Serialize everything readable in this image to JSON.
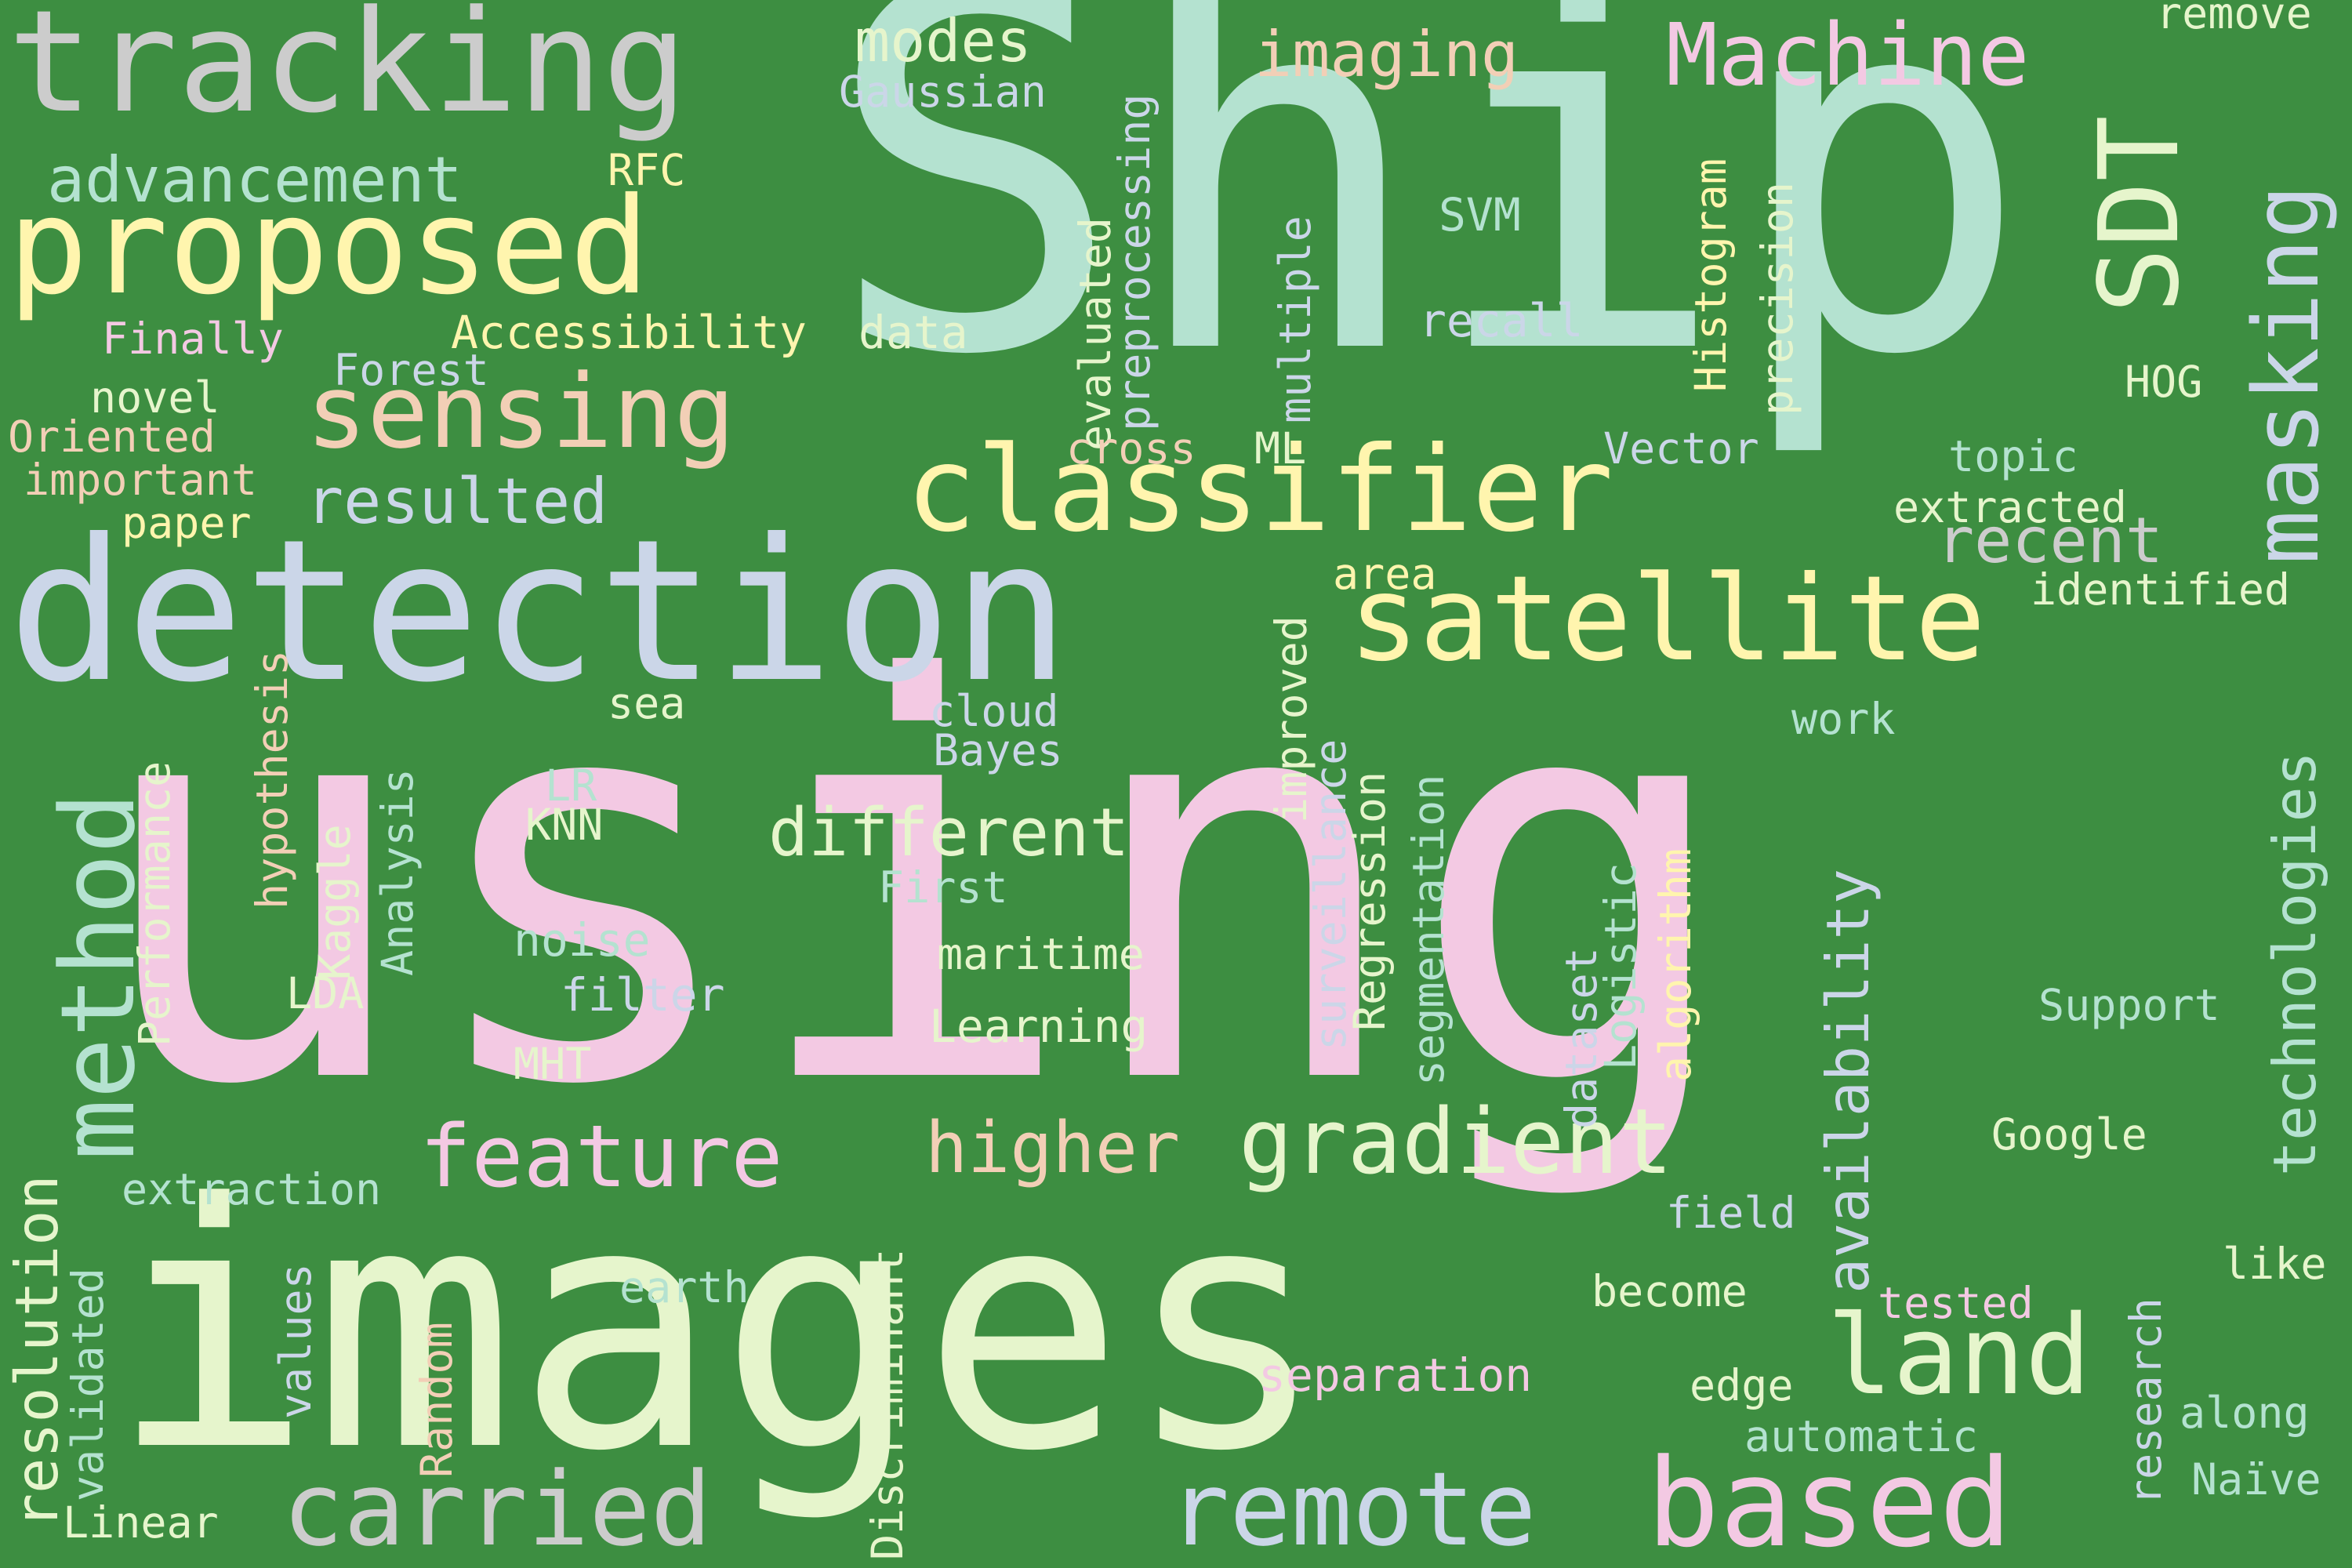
{
  "word_cloud": {
    "background": "#3d8e41",
    "palette": [
      "#f3c9e3",
      "#e6f5cc",
      "#b4e2d0",
      "#cbd6e8",
      "#fff5ae",
      "#f2cfb6",
      "#cccccc",
      "#cfd8ea"
    ],
    "words": [
      {
        "text": "using",
        "color": "#f3c9e3"
      },
      {
        "text": "Ship",
        "color": "#b4e2d0"
      },
      {
        "text": "images",
        "color": "#e6f5cc"
      },
      {
        "text": "detection",
        "color": "#cbd6e8"
      },
      {
        "text": "tracking",
        "color": "#cccccc"
      },
      {
        "text": "proposed",
        "color": "#fff5ae"
      },
      {
        "text": "satellite",
        "color": "#fff5ae"
      },
      {
        "text": "classifier",
        "color": "#fff5ae"
      },
      {
        "text": "sensing",
        "color": "#f2cfb6"
      },
      {
        "text": "remote",
        "color": "#cbd6e8"
      },
      {
        "text": "based",
        "color": "#f3c9e3"
      },
      {
        "text": "carried",
        "color": "#cccccc"
      },
      {
        "text": "land",
        "color": "#e6f5cc"
      },
      {
        "text": "gradient",
        "color": "#e6f5cc"
      },
      {
        "text": "feature",
        "color": "#f3c9e3"
      },
      {
        "text": "Machine",
        "color": "#f3c9e3"
      },
      {
        "text": "masking",
        "color": "#cbd6e8"
      },
      {
        "text": "SDT",
        "color": "#e6f5cc"
      },
      {
        "text": "method",
        "color": "#b4e2d0"
      },
      {
        "text": "different",
        "color": "#e6f5cc"
      },
      {
        "text": "higher",
        "color": "#f2cfb6"
      },
      {
        "text": "resolution",
        "color": "#e6f5cc"
      },
      {
        "text": "advancement",
        "color": "#b4e2d0"
      },
      {
        "text": "resulted",
        "color": "#cbd6e8"
      },
      {
        "text": "recent",
        "color": "#cccccc"
      },
      {
        "text": "technologies",
        "color": "#b4e2d0"
      },
      {
        "text": "availability",
        "color": "#cbd6e8"
      },
      {
        "text": "imaging",
        "color": "#f2cfb6"
      },
      {
        "text": "modes",
        "color": "#e6f5cc"
      },
      {
        "text": "Gaussian",
        "color": "#cbd6e8"
      },
      {
        "text": "RFC",
        "color": "#fff5ae"
      },
      {
        "text": "Accessibility",
        "color": "#fff5ae"
      },
      {
        "text": "data",
        "color": "#e6f5cc"
      },
      {
        "text": "Finally",
        "color": "#f3c9e3"
      },
      {
        "text": "Forest",
        "color": "#cbd6e8"
      },
      {
        "text": "novel",
        "color": "#e6f5cc"
      },
      {
        "text": "Oriented",
        "color": "#f2cfb6"
      },
      {
        "text": "important",
        "color": "#f2cfb6"
      },
      {
        "text": "paper",
        "color": "#fff5ae"
      },
      {
        "text": "preprocessing",
        "color": "#cbd6e8"
      },
      {
        "text": "evaluated",
        "color": "#e6f5cc"
      },
      {
        "text": "multiple",
        "color": "#cbd6e8"
      },
      {
        "text": "cross",
        "color": "#f2cfb6"
      },
      {
        "text": "ML",
        "color": "#e6f5cc"
      },
      {
        "text": "SVM",
        "color": "#b4e2d0"
      },
      {
        "text": "recall",
        "color": "#cbd6e8"
      },
      {
        "text": "Histogram",
        "color": "#fff5ae"
      },
      {
        "text": "precision",
        "color": "#e6f5cc"
      },
      {
        "text": "Vector",
        "color": "#cbd6e8"
      },
      {
        "text": "remove",
        "color": "#e6f5cc"
      },
      {
        "text": "HOG",
        "color": "#e6f5cc"
      },
      {
        "text": "topic",
        "color": "#b4e2d0"
      },
      {
        "text": "extracted",
        "color": "#e6f5cc"
      },
      {
        "text": "identified",
        "color": "#e6f5cc"
      },
      {
        "text": "area",
        "color": "#fff5ae"
      },
      {
        "text": "improved",
        "color": "#e6f5cc"
      },
      {
        "text": "surveillance",
        "color": "#cbd6e8"
      },
      {
        "text": "Regression",
        "color": "#e6f5cc"
      },
      {
        "text": "segmentation",
        "color": "#b4e2d0"
      },
      {
        "text": "Logistic",
        "color": "#b4e2d0"
      },
      {
        "text": "algorithm",
        "color": "#fff5ae"
      },
      {
        "text": "dataset",
        "color": "#cbd6e8"
      },
      {
        "text": "hypothesis",
        "color": "#f2cfb6"
      },
      {
        "text": "Performance",
        "color": "#e6f5cc"
      },
      {
        "text": "Kaggle",
        "color": "#e6f5cc"
      },
      {
        "text": "Analysis",
        "color": "#b4e2d0"
      },
      {
        "text": "sea",
        "color": "#e6f5cc"
      },
      {
        "text": "cloud",
        "color": "#cbd6e8"
      },
      {
        "text": "Bayes",
        "color": "#cbd6e8"
      },
      {
        "text": "work",
        "color": "#b4e2d0"
      },
      {
        "text": "LR",
        "color": "#b4e2d0"
      },
      {
        "text": "KNN",
        "color": "#e6f5cc"
      },
      {
        "text": "First",
        "color": "#b4e2d0"
      },
      {
        "text": "noise",
        "color": "#b4e2d0"
      },
      {
        "text": "LDA",
        "color": "#e6f5cc"
      },
      {
        "text": "maritime",
        "color": "#e6f5cc"
      },
      {
        "text": "filter",
        "color": "#cbd6e8"
      },
      {
        "text": "Learning",
        "color": "#e6f5cc"
      },
      {
        "text": "Support",
        "color": "#b4e2d0"
      },
      {
        "text": "MHT",
        "color": "#e6f5cc"
      },
      {
        "text": "Google",
        "color": "#e6f5cc"
      },
      {
        "text": "extraction",
        "color": "#b4e2d0"
      },
      {
        "text": "field",
        "color": "#cbd6e8"
      },
      {
        "text": "like",
        "color": "#e6f5cc"
      },
      {
        "text": "earth",
        "color": "#b4e2d0"
      },
      {
        "text": "become",
        "color": "#e6f5cc"
      },
      {
        "text": "tested",
        "color": "#f3c9e3"
      },
      {
        "text": "values",
        "color": "#cbd6e8"
      },
      {
        "text": "validated",
        "color": "#b4e2d0"
      },
      {
        "text": "Random",
        "color": "#f2cfb6"
      },
      {
        "text": "Discriminant",
        "color": "#e6f5cc"
      },
      {
        "text": "separation",
        "color": "#f3c9e3"
      },
      {
        "text": "edge",
        "color": "#e6f5cc"
      },
      {
        "text": "automatic",
        "color": "#b4e2d0"
      },
      {
        "text": "research",
        "color": "#cbd6e8"
      },
      {
        "text": "along",
        "color": "#b4e2d0"
      },
      {
        "text": "Naïve",
        "color": "#b4e2d0"
      },
      {
        "text": "Linear",
        "color": "#e6f5cc"
      }
    ]
  }
}
